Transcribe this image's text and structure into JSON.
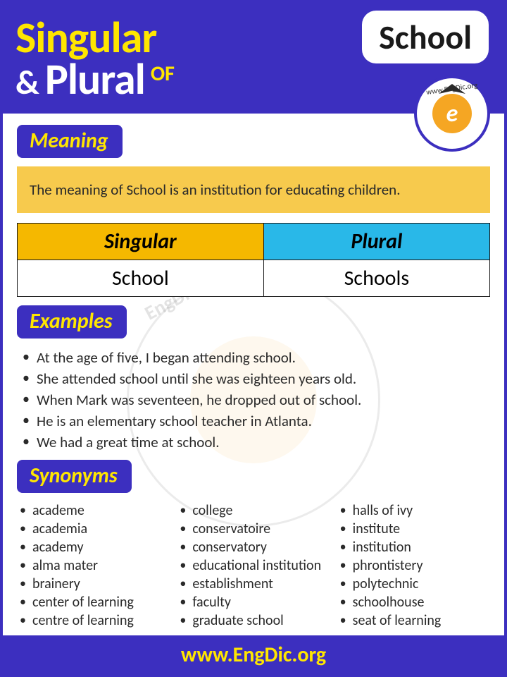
{
  "header": {
    "word1": "Singular",
    "amp": "&",
    "word2": "Plural",
    "of": "OF",
    "subject": "School",
    "logo_url": "www.EngDic.org"
  },
  "colors": {
    "primary": "#3c2fbf",
    "accent_yellow": "#ffe600",
    "meaning_bg": "#f7ca4d",
    "singular_bg": "#f5b800",
    "plural_bg": "#29b8e8",
    "text": "#2a2a2a",
    "white": "#ffffff"
  },
  "typography": {
    "header_fontsize": 62,
    "label_fontsize": 30,
    "body_fontsize": 21,
    "table_fontsize": 30,
    "footer_fontsize": 30
  },
  "sections": {
    "meaning_label": "Meaning",
    "meaning_text": "The meaning of School is an institution for educating children.",
    "examples_label": "Examples",
    "synonyms_label": "Synonyms"
  },
  "table": {
    "headers": [
      "Singular",
      "Plural"
    ],
    "row": [
      "School",
      "Schools"
    ]
  },
  "examples": [
    "At the age of five, I began attending school.",
    "She attended school until she was eighteen years old.",
    "When Mark was seventeen, he dropped out of school.",
    "He is an elementary school teacher in Atlanta.",
    "We had a great time at school."
  ],
  "synonyms": {
    "col1": [
      "academe",
      "academia",
      "academy",
      "alma mater",
      "brainery",
      "center of learning",
      "centre of learning"
    ],
    "col2": [
      "college",
      "conservatoire",
      "conservatory",
      "educational institution",
      "establishment",
      "faculty",
      "graduate school"
    ],
    "col3": [
      "halls of ivy",
      "institute",
      "institution",
      "phrontistery",
      "polytechnic",
      "schoolhouse",
      "seat of learning"
    ]
  },
  "footer": "www.EngDic.org"
}
